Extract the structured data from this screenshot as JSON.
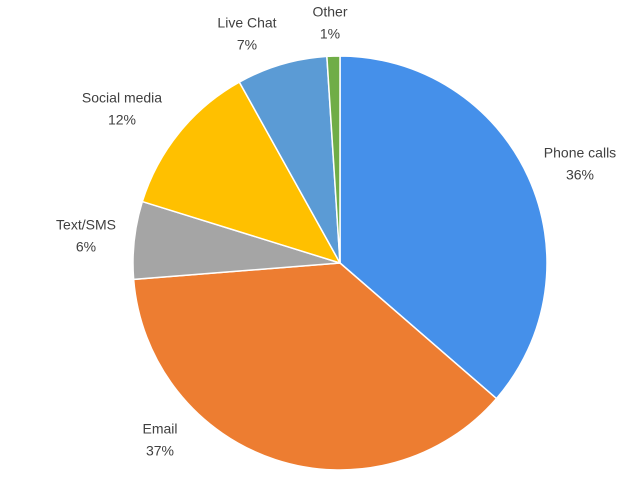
{
  "chart_data": {
    "type": "pie",
    "categories": [
      "Phone calls",
      "Email",
      "Text/SMS",
      "Social media",
      "Live Chat",
      "Other"
    ],
    "values": [
      36,
      37,
      6,
      12,
      7,
      1
    ],
    "value_labels": [
      "36%",
      "37%",
      "6%",
      "12%",
      "7%",
      "1%"
    ],
    "colors": [
      "#4590ea",
      "#ed7d31",
      "#a5a5a5",
      "#ffc000",
      "#5b9bd5",
      "#70ad47"
    ]
  }
}
